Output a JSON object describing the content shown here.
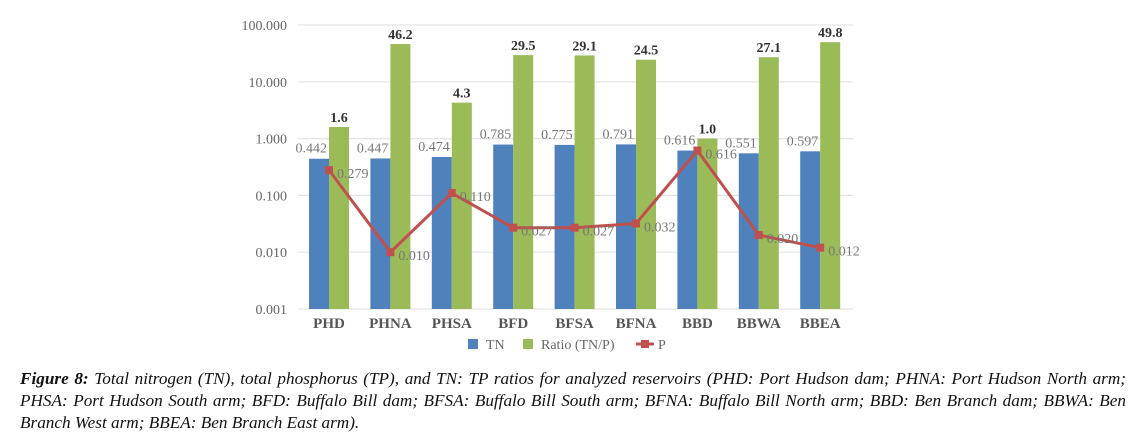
{
  "chart_data": {
    "type": "bar",
    "scale": "log",
    "categories": [
      "PHD",
      "PHNA",
      "PHSA",
      "BFD",
      "BFSA",
      "BFNA",
      "BBD",
      "BBWA",
      "BBEA"
    ],
    "series": [
      {
        "name": "TN",
        "kind": "bar",
        "color": "#4f81bd",
        "values": [
          0.442,
          0.447,
          0.474,
          0.785,
          0.775,
          0.791,
          0.616,
          0.551,
          0.597
        ],
        "labels": [
          "0.442",
          "0.447",
          "0.474",
          "0.785",
          "0.775",
          "0.791",
          "0.616",
          "0.551",
          "0.597"
        ]
      },
      {
        "name": "Ratio (TN/P)",
        "kind": "bar",
        "color": "#9bbb59",
        "values": [
          1.6,
          46.2,
          4.3,
          29.5,
          29.1,
          24.5,
          1.0,
          27.1,
          49.8
        ],
        "labels": [
          "1.6",
          "46.2",
          "4.3",
          "29.5",
          "29.1",
          "24.5",
          "1.0",
          "27.1",
          "49.8"
        ]
      },
      {
        "name": "P",
        "kind": "line",
        "color": "#c0504d",
        "values": [
          0.279,
          0.01,
          0.11,
          0.027,
          0.027,
          0.032,
          0.616,
          0.02,
          0.012
        ],
        "labels": [
          "0.279",
          "0.010",
          "0.110",
          "0.027",
          "0.027",
          "0.032",
          "0.616",
          "0.020",
          "0.012"
        ]
      }
    ],
    "yticks": [
      "0.001",
      "0.010",
      "0.100",
      "1.000",
      "10.000",
      "100.000"
    ],
    "ylim": [
      0.001,
      100
    ],
    "grid": true,
    "legend_position": "bottom",
    "title": "",
    "xlabel": "",
    "ylabel": ""
  },
  "caption": {
    "label": "Figure 8:",
    "text": "Total nitrogen (TN), total phosphorus (TP), and TN: TP ratios for analyzed reservoirs (PHD: Port Hudson dam; PHNA: Port Hudson North arm; PHSA: Port Hudson South arm; BFD: Buffalo Bill dam; BFSA: Buffalo Bill South arm; BFNA: Buffalo Bill North arm; BBD: Ben Branch dam; BBWA: Ben Branch West arm; BBEA: Ben Branch East arm)."
  }
}
